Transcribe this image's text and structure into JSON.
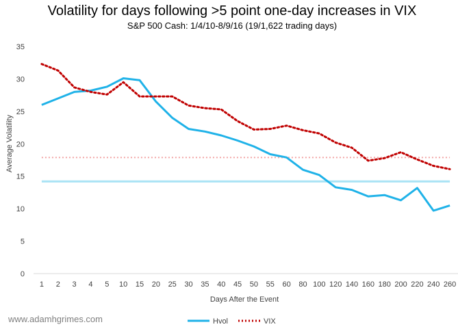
{
  "chart_data": {
    "type": "line",
    "title": "Volatility for days following >5 point one-day increases in VIX",
    "subtitle": "S&P 500 Cash: 1/4/10-8/9/16 (19/1,622 trading days)",
    "xlabel": "Days After the Event",
    "ylabel": "Average Volatility",
    "ylim": [
      0,
      35
    ],
    "yticks": [
      0,
      5,
      10,
      15,
      20,
      25,
      30,
      35
    ],
    "categories": [
      "1",
      "2",
      "3",
      "4",
      "5",
      "10",
      "15",
      "20",
      "25",
      "30",
      "35",
      "40",
      "45",
      "50",
      "55",
      "60",
      "80",
      "100",
      "120",
      "140",
      "160",
      "180",
      "200",
      "220",
      "240",
      "260"
    ],
    "series": [
      {
        "name": "Hvol",
        "color": "#1fb2e8",
        "style": "solid",
        "values": [
          26.0,
          27.0,
          28.0,
          28.2,
          28.8,
          30.1,
          29.8,
          26.5,
          24.0,
          22.3,
          21.9,
          21.3,
          20.5,
          19.6,
          18.4,
          17.9,
          16.0,
          15.2,
          13.3,
          12.9,
          11.9,
          12.1,
          11.3,
          13.2,
          9.7,
          10.5
        ],
        "baseline": 14.2,
        "baseline_color": "#a9e3f5"
      },
      {
        "name": "VIX",
        "color": "#c00000",
        "style": "dotted",
        "values": [
          32.3,
          31.3,
          28.7,
          28.0,
          27.6,
          29.5,
          27.3,
          27.3,
          27.3,
          25.9,
          25.5,
          25.3,
          23.5,
          22.2,
          22.3,
          22.8,
          22.1,
          21.6,
          20.2,
          19.4,
          17.4,
          17.8,
          18.7,
          17.6,
          16.6,
          16.1
        ],
        "baseline": 17.9,
        "baseline_color": "#f2a6a6"
      }
    ],
    "legend": "bottom"
  },
  "watermark": "www.adamhgrimes.com"
}
